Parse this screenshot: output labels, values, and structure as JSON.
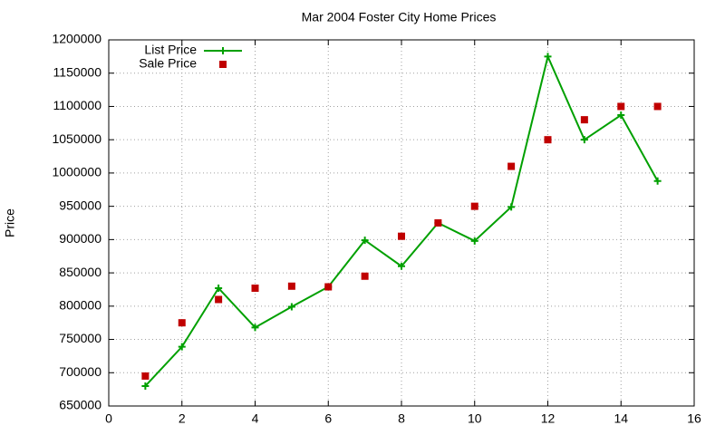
{
  "chart_data": {
    "type": "line",
    "title": "Mar 2004 Foster City Home Prices",
    "ylabel": "Price",
    "x": [
      1,
      2,
      3,
      4,
      5,
      6,
      7,
      8,
      9,
      10,
      11,
      12,
      13,
      14,
      15
    ],
    "series": [
      {
        "name": "List Price",
        "color": "#00a000",
        "mode": "lines+markers",
        "marker": "plus",
        "values": [
          680000,
          739000,
          827000,
          768000,
          799000,
          829000,
          899000,
          860000,
          925000,
          898000,
          949000,
          1175000,
          1050000,
          1087000,
          988000
        ]
      },
      {
        "name": "Sale Price",
        "color": "#c00000",
        "mode": "markers",
        "marker": "square",
        "values": [
          695000,
          775000,
          810000,
          827000,
          830000,
          829000,
          845000,
          905000,
          925000,
          950000,
          1010000,
          1050000,
          1080000,
          1100000,
          1100000
        ]
      }
    ],
    "xlim": [
      0,
      16
    ],
    "xticks": [
      0,
      2,
      4,
      6,
      8,
      10,
      12,
      14,
      16
    ],
    "ylim": [
      650000,
      1200000
    ],
    "yticks": [
      650000,
      700000,
      750000,
      800000,
      850000,
      900000,
      950000,
      1000000,
      1050000,
      1100000,
      1150000,
      1200000
    ],
    "grid": true,
    "legend": "upper left"
  }
}
